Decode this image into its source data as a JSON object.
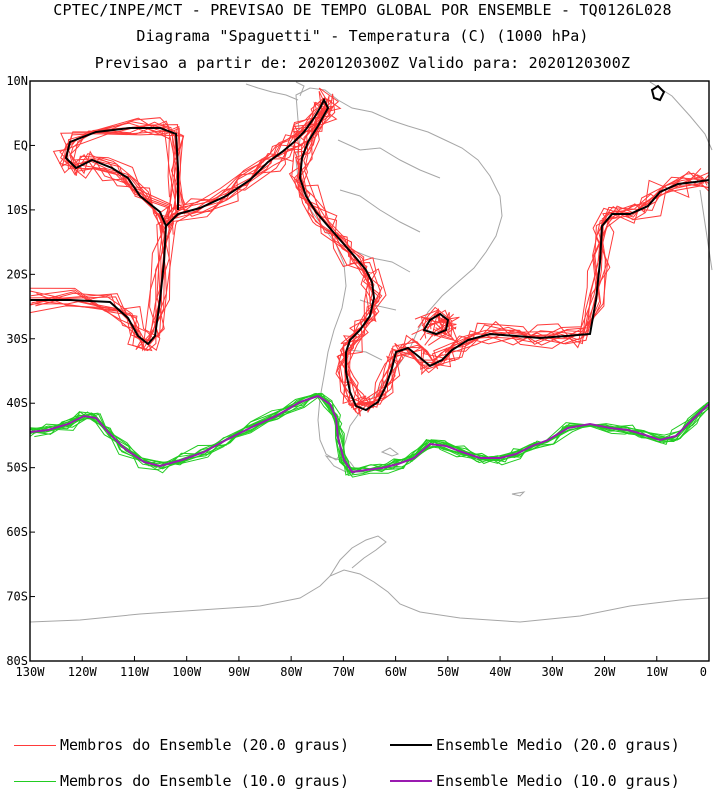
{
  "header": {
    "line1": "CPTEC/INPE/MCT - PREVISAO DE TEMPO GLOBAL POR ENSEMBLE - TQ0126L028",
    "line2": "Diagrama \"Spaguetti\" - Temperatura (C) (1000 hPa)",
    "line3": "Previsao a partir de: 2020120300Z  Valido para: 2020120300Z"
  },
  "map": {
    "lon_range": [
      -130,
      0
    ],
    "lat_range": [
      -80,
      10
    ],
    "lat_ticks": [
      {
        "value": 10,
        "label": "10N"
      },
      {
        "value": 0,
        "label": "EQ"
      },
      {
        "value": -10,
        "label": "10S"
      },
      {
        "value": -20,
        "label": "20S"
      },
      {
        "value": -30,
        "label": "30S"
      },
      {
        "value": -40,
        "label": "40S"
      },
      {
        "value": -50,
        "label": "50S"
      },
      {
        "value": -60,
        "label": "60S"
      },
      {
        "value": -70,
        "label": "70S"
      },
      {
        "value": -80,
        "label": "80S"
      }
    ],
    "lon_ticks": [
      {
        "value": -130,
        "label": "130W"
      },
      {
        "value": -120,
        "label": "120W"
      },
      {
        "value": -110,
        "label": "110W"
      },
      {
        "value": -100,
        "label": "100W"
      },
      {
        "value": -90,
        "label": "90W"
      },
      {
        "value": -80,
        "label": "80W"
      },
      {
        "value": -70,
        "label": "70W"
      },
      {
        "value": -60,
        "label": "60W"
      },
      {
        "value": -50,
        "label": "50W"
      },
      {
        "value": -40,
        "label": "40W"
      },
      {
        "value": -30,
        "label": "30W"
      },
      {
        "value": -20,
        "label": "20W"
      },
      {
        "value": -10,
        "label": "10W"
      },
      {
        "value": 0,
        "label": "0"
      }
    ],
    "colors": {
      "members_20": "#ff3a3a",
      "mean_20": "#000000",
      "members_10": "#22cc22",
      "mean_10": "#9a1ab0",
      "coastline": "#a6a6a6"
    }
  },
  "legend": {
    "members_20": "Membros do Ensemble (20.0 graus)",
    "mean_20": "Ensemble Medio (20.0 graus)",
    "members_10": "Membros do Ensemble (10.0 graus)",
    "mean_10": "Ensemble Medio (10.0 graus)"
  }
}
